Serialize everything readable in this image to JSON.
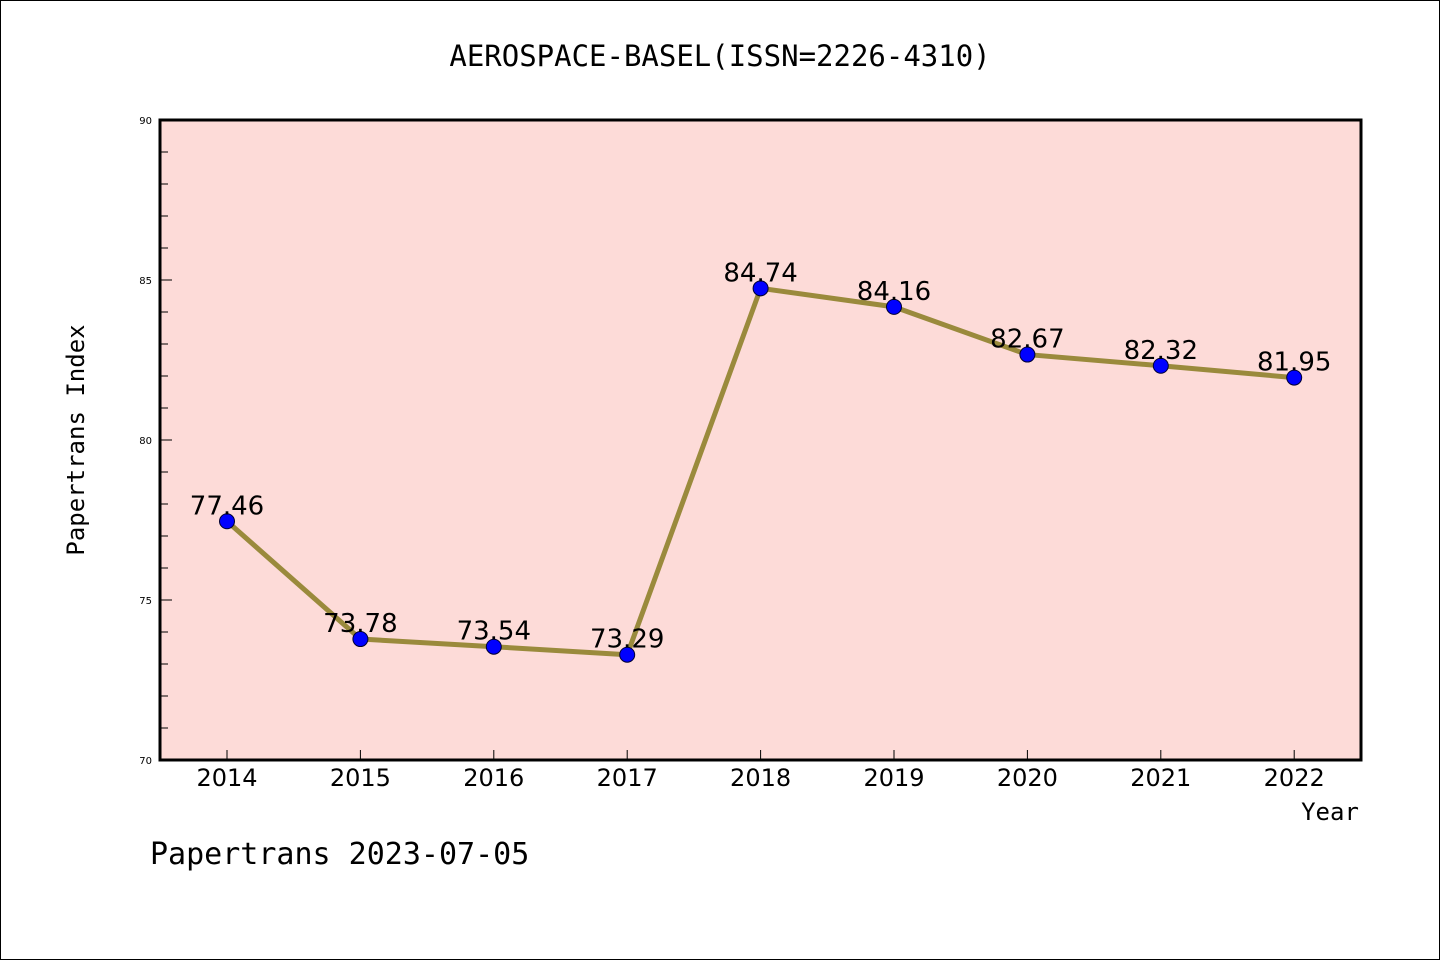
{
  "chart_data": {
    "type": "line",
    "title": "AEROSPACE-BASEL(ISSN=2226-4310)",
    "xlabel": "Year",
    "ylabel": "Papertrans Index",
    "categories": [
      "2014",
      "2015",
      "2016",
      "2017",
      "2018",
      "2019",
      "2020",
      "2021",
      "2022"
    ],
    "series": [
      {
        "values": [
          77.46,
          73.78,
          73.54,
          73.29,
          84.74,
          84.16,
          82.67,
          82.32,
          81.95
        ],
        "labels": [
          "77.46",
          "73.78",
          "73.54",
          "73.29",
          "84.74",
          "84.16",
          "82.67",
          "82.32",
          "81.95"
        ]
      }
    ],
    "ylim": [
      70,
      90
    ],
    "yticks": [
      "70",
      "75",
      "80",
      "85",
      "90"
    ],
    "grid": false,
    "colors": {
      "plot_background": "#fddbd8",
      "line": "#9a8a3c",
      "marker": "#0000ff"
    }
  },
  "footer": "Papertrans 2023-07-05"
}
